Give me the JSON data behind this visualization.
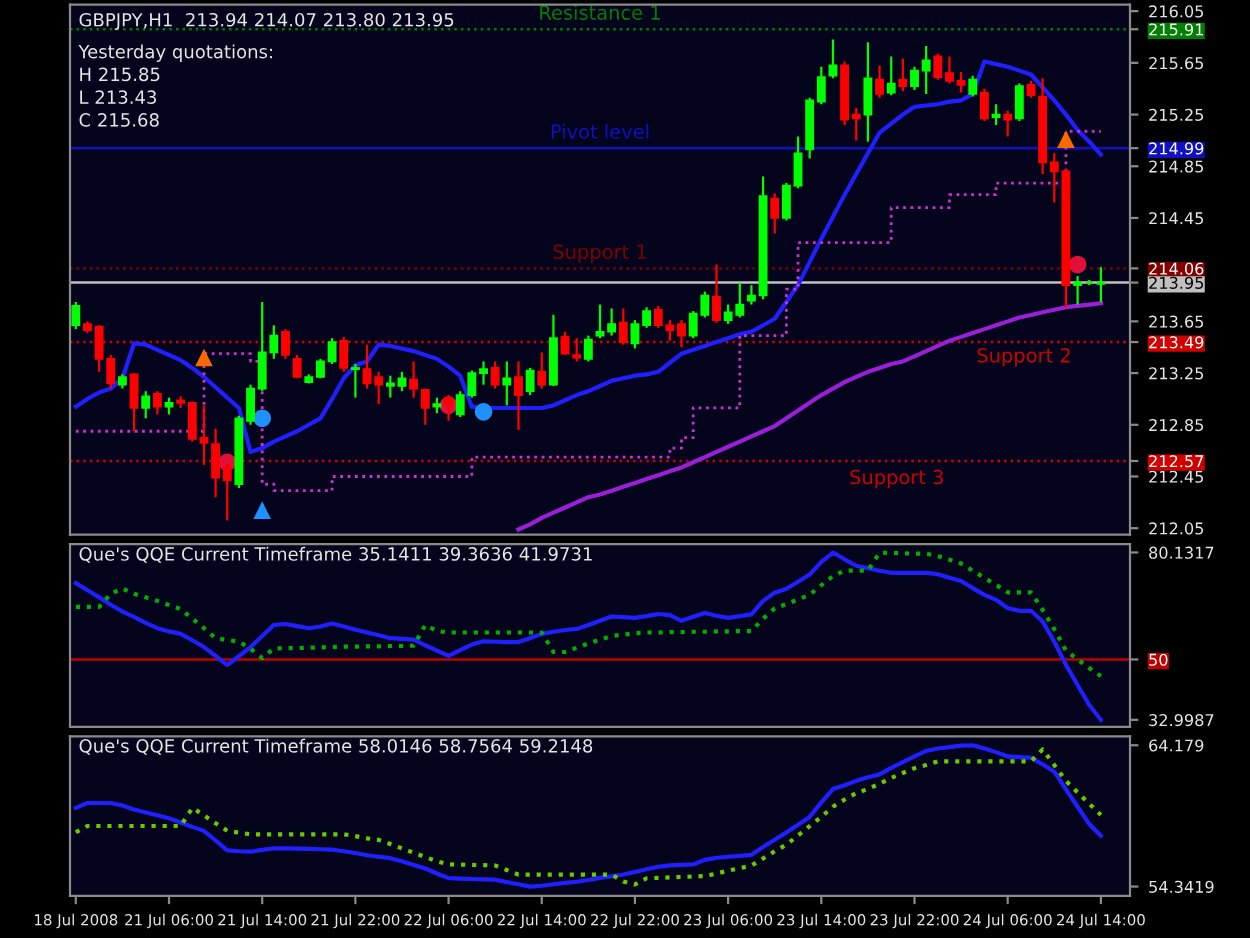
{
  "chart_data": [
    {
      "type": "candlestick",
      "title": "GBPJPY,H1  213.94 214.07 213.80 213.95",
      "annotations": [
        "Yesterday quotations:",
        "H 215.85",
        "L 213.43",
        "C 215.68"
      ],
      "categories": [
        null,
        null,
        null,
        null,
        null,
        null,
        null,
        null,
        null,
        null,
        null,
        null,
        null,
        null,
        null,
        null,
        null,
        null,
        null,
        null,
        null,
        null,
        null,
        null,
        null,
        null,
        null,
        null,
        null,
        null,
        null,
        null,
        null,
        null,
        null,
        null,
        null,
        null,
        null,
        null,
        null,
        null,
        null,
        null,
        null,
        null,
        null,
        null,
        null,
        null,
        null,
        null,
        null,
        null,
        null,
        null,
        null,
        null,
        null,
        null,
        null,
        null,
        null,
        null,
        null,
        null,
        null,
        null,
        null,
        null,
        null,
        null,
        null,
        null,
        null,
        null,
        null,
        null,
        null,
        null,
        null,
        null,
        null,
        null,
        null,
        null,
        null,
        null,
        null
      ],
      "tick_labels": "y",
      "ohlc": [
        [
          213.62,
          213.8,
          213.59,
          213.77
        ],
        [
          213.63,
          213.65,
          213.56,
          213.58
        ],
        [
          213.61,
          213.62,
          213.26,
          213.36
        ],
        [
          213.36,
          213.39,
          213.13,
          213.17
        ],
        [
          213.16,
          213.24,
          213.13,
          213.22
        ],
        [
          213.24,
          213.25,
          212.8,
          212.98
        ],
        [
          212.98,
          213.11,
          212.9,
          213.07
        ],
        [
          213.09,
          213.11,
          212.93,
          212.99
        ],
        [
          212.99,
          213.06,
          212.93,
          213.02
        ],
        [
          213.04,
          213.07,
          212.98,
          213.02
        ],
        [
          213.02,
          213.03,
          212.72,
          212.74
        ],
        [
          212.75,
          213.0,
          212.54,
          212.71
        ],
        [
          212.7,
          212.82,
          212.29,
          212.44
        ],
        [
          212.52,
          212.55,
          212.11,
          212.42
        ],
        [
          212.39,
          212.92,
          212.36,
          212.9
        ],
        [
          212.88,
          213.16,
          212.85,
          213.13
        ],
        [
          213.13,
          213.8,
          213.11,
          213.41
        ],
        [
          213.41,
          213.62,
          213.36,
          213.54
        ],
        [
          213.57,
          213.59,
          213.36,
          213.39
        ],
        [
          213.36,
          213.39,
          213.21,
          213.22
        ],
        [
          213.18,
          213.24,
          213.17,
          213.22
        ],
        [
          213.22,
          213.36,
          213.21,
          213.34
        ],
        [
          213.34,
          213.52,
          213.32,
          213.49
        ],
        [
          213.5,
          213.53,
          213.26,
          213.29
        ],
        [
          213.28,
          213.32,
          213.06,
          213.29
        ],
        [
          213.28,
          213.47,
          213.13,
          213.17
        ],
        [
          213.22,
          213.26,
          213.01,
          213.16
        ],
        [
          213.15,
          213.23,
          213.06,
          213.17
        ],
        [
          213.15,
          213.26,
          213.11,
          213.21
        ],
        [
          213.2,
          213.34,
          213.06,
          213.13
        ],
        [
          213.12,
          213.13,
          212.85,
          212.98
        ],
        [
          212.99,
          213.06,
          212.94,
          213.01
        ],
        [
          213.06,
          213.08,
          212.88,
          213.0
        ],
        [
          212.93,
          213.11,
          212.91,
          213.08
        ],
        [
          213.08,
          213.27,
          213.06,
          213.25
        ],
        [
          213.25,
          213.34,
          213.16,
          213.28
        ],
        [
          213.29,
          213.34,
          213.13,
          213.16
        ],
        [
          213.16,
          213.34,
          213.0,
          213.21
        ],
        [
          213.22,
          213.34,
          212.81,
          213.08
        ],
        [
          213.11,
          213.29,
          213.08,
          213.27
        ],
        [
          213.26,
          213.41,
          213.13,
          213.16
        ],
        [
          213.16,
          213.7,
          213.15,
          213.52
        ],
        [
          213.53,
          213.57,
          213.39,
          213.4
        ],
        [
          213.39,
          213.52,
          213.34,
          213.37
        ],
        [
          213.36,
          213.54,
          213.34,
          213.51
        ],
        [
          213.54,
          213.78,
          213.52,
          213.57
        ],
        [
          213.57,
          213.75,
          213.54,
          213.63
        ],
        [
          213.64,
          213.75,
          213.47,
          213.49
        ],
        [
          213.48,
          213.66,
          213.44,
          213.63
        ],
        [
          213.62,
          213.76,
          213.6,
          213.73
        ],
        [
          213.74,
          213.77,
          213.6,
          213.62
        ],
        [
          213.62,
          213.66,
          213.5,
          213.58
        ],
        [
          213.63,
          213.66,
          213.45,
          213.54
        ],
        [
          213.54,
          213.73,
          213.52,
          213.71
        ],
        [
          213.7,
          213.88,
          213.68,
          213.85
        ],
        [
          213.84,
          214.09,
          213.64,
          213.66
        ],
        [
          213.66,
          213.78,
          213.63,
          213.72
        ],
        [
          213.7,
          213.95,
          213.68,
          213.78
        ],
        [
          213.81,
          213.93,
          213.78,
          213.85
        ],
        [
          213.85,
          214.77,
          213.82,
          214.62
        ],
        [
          214.6,
          214.64,
          214.33,
          214.45
        ],
        [
          214.45,
          214.72,
          214.43,
          214.7
        ],
        [
          214.7,
          215.08,
          214.68,
          214.95
        ],
        [
          214.98,
          215.38,
          214.91,
          215.36
        ],
        [
          215.35,
          215.62,
          215.33,
          215.54
        ],
        [
          215.55,
          215.83,
          215.53,
          215.63
        ],
        [
          215.63,
          215.66,
          215.17,
          215.21
        ],
        [
          215.25,
          215.3,
          215.05,
          215.22
        ],
        [
          215.25,
          215.81,
          215.04,
          215.53
        ],
        [
          215.52,
          215.63,
          215.38,
          215.41
        ],
        [
          215.42,
          215.7,
          215.4,
          215.49
        ],
        [
          215.52,
          215.68,
          215.43,
          215.47
        ],
        [
          215.47,
          215.62,
          215.44,
          215.59
        ],
        [
          215.59,
          215.78,
          215.41,
          215.67
        ],
        [
          215.7,
          215.72,
          215.52,
          215.54
        ],
        [
          215.57,
          215.7,
          215.49,
          215.51
        ],
        [
          215.51,
          215.58,
          215.42,
          215.48
        ],
        [
          215.41,
          215.55,
          215.39,
          215.52
        ],
        [
          215.42,
          215.45,
          215.2,
          215.22
        ],
        [
          215.23,
          215.33,
          215.17,
          215.25
        ],
        [
          215.25,
          215.28,
          215.08,
          215.21
        ],
        [
          215.22,
          215.49,
          215.2,
          215.47
        ],
        [
          215.48,
          215.51,
          215.38,
          215.4
        ],
        [
          215.39,
          215.53,
          214.79,
          214.88
        ],
        [
          214.88,
          214.95,
          214.57,
          214.81
        ],
        [
          214.81,
          214.83,
          213.76,
          213.93
        ],
        [
          213.93,
          214.0,
          213.78,
          213.95
        ],
        [
          213.95,
          213.97,
          213.93,
          213.95
        ],
        [
          213.94,
          214.07,
          213.8,
          213.95
        ]
      ],
      "colors": [
        "#00ff00",
        "#ff0000",
        "#ff0000",
        "#ff0000",
        "#00ff00",
        "#ff0000",
        "#00ff00",
        "#ff0000",
        "#00ff00",
        "#ff0000",
        "#ff0000",
        "#ff0000",
        "#ff0000",
        "#ff0000",
        "#00ff00",
        "#00ff00",
        "#00ff00",
        "#00ff00",
        "#ff0000",
        "#ff0000",
        "#00ff00",
        "#00ff00",
        "#00ff00",
        "#ff0000",
        "#00ff00",
        "#ff0000",
        "#ff0000",
        "#00ff00",
        "#00ff00",
        "#ff0000",
        "#ff0000",
        "#00ff00",
        "#ff0000",
        "#00ff00",
        "#00ff00",
        "#00ff00",
        "#ff0000",
        "#00ff00",
        "#ff0000",
        "#00ff00",
        "#ff0000",
        "#00ff00",
        "#ff0000",
        "#ff0000",
        "#00ff00",
        "#00ff00",
        "#00ff00",
        "#ff0000",
        "#00ff00",
        "#00ff00",
        "#ff0000",
        "#ff0000",
        "#ff0000",
        "#00ff00",
        "#00ff00",
        "#ff0000",
        "#00ff00",
        "#00ff00",
        "#00ff00",
        "#00ff00",
        "#ff0000",
        "#00ff00",
        "#00ff00",
        "#00ff00",
        "#00ff00",
        "#00ff00",
        "#ff0000",
        "#ff0000",
        "#00ff00",
        "#ff0000",
        "#00ff00",
        "#ff0000",
        "#00ff00",
        "#00ff00",
        "#ff0000",
        "#ff0000",
        "#ff0000",
        "#00ff00",
        "#ff0000",
        "#00ff00",
        "#ff0000",
        "#00ff00",
        "#ff0000",
        "#ff0000",
        "#ff0000",
        "#ff0000",
        "#00ff00",
        "#00ff00",
        "#00ff00"
      ],
      "series": [
        {
          "type": "line",
          "color": "#2020ff",
          "values": [
            212.99,
            213.05,
            213.1,
            213.13,
            213.21,
            213.48,
            213.47,
            213.43,
            213.39,
            213.35,
            213.29,
            213.22,
            213.14,
            213.06,
            212.98,
            212.64,
            212.67,
            212.72,
            212.76,
            212.8,
            212.85,
            212.9,
            213.05,
            213.21,
            213.31,
            213.34,
            213.47,
            213.46,
            213.44,
            213.42,
            213.39,
            213.36,
            213.3,
            213.23,
            212.99,
            212.98,
            212.98,
            212.98,
            212.98,
            212.98,
            212.98,
            213.0,
            213.04,
            213.08,
            213.11,
            213.15,
            213.19,
            213.21,
            213.23,
            213.24,
            213.26,
            213.33,
            213.4,
            213.43,
            213.46,
            213.49,
            213.52,
            213.55,
            213.57,
            213.62,
            213.67,
            213.8,
            213.93,
            214.11,
            214.29,
            214.46,
            214.63,
            214.79,
            214.95,
            215.11,
            215.18,
            215.25,
            215.31,
            215.32,
            215.33,
            215.35,
            215.36,
            215.41,
            215.66,
            215.64,
            215.62,
            215.59,
            215.56,
            215.46,
            215.36,
            215.25,
            215.13,
            215.04,
            214.94
          ]
        },
        {
          "type": "line",
          "color": "#9a1fd6",
          "values": [
            null,
            null,
            null,
            null,
            null,
            null,
            null,
            null,
            null,
            null,
            null,
            null,
            null,
            null,
            null,
            null,
            null,
            null,
            null,
            null,
            null,
            null,
            null,
            null,
            null,
            null,
            null,
            null,
            null,
            null,
            null,
            null,
            null,
            null,
            null,
            null,
            null,
            null,
            212.04,
            212.08,
            212.13,
            212.17,
            212.21,
            212.25,
            212.29,
            212.31,
            212.34,
            212.37,
            212.4,
            212.43,
            212.46,
            212.49,
            212.52,
            212.56,
            212.6,
            212.64,
            212.68,
            212.72,
            212.76,
            212.8,
            212.84,
            212.9,
            212.96,
            213.02,
            213.08,
            213.13,
            213.18,
            213.22,
            213.26,
            213.29,
            213.32,
            213.34,
            213.38,
            213.42,
            213.46,
            213.5,
            213.53,
            213.56,
            213.59,
            213.62,
            213.65,
            213.68,
            213.7,
            213.72,
            213.74,
            213.76,
            213.77,
            213.78,
            213.79
          ]
        },
        {
          "type": "step",
          "color": "#d030d0",
          "line_style": "dotted",
          "values": [
            212.8,
            212.8,
            212.8,
            212.8,
            212.8,
            212.8,
            212.8,
            212.8,
            212.8,
            212.8,
            212.8,
            213.4,
            213.4,
            213.4,
            213.4,
            213.34,
            212.39,
            212.34,
            212.34,
            212.34,
            212.34,
            212.34,
            212.45,
            212.45,
            212.45,
            212.45,
            212.45,
            212.45,
            212.45,
            212.45,
            212.45,
            212.45,
            212.45,
            212.45,
            212.6,
            212.6,
            212.6,
            212.6,
            212.6,
            212.6,
            212.6,
            212.6,
            212.6,
            212.6,
            212.6,
            212.6,
            212.6,
            212.6,
            212.6,
            212.6,
            212.6,
            212.67,
            212.75,
            212.98,
            212.98,
            212.98,
            212.98,
            213.54,
            213.54,
            213.54,
            213.54,
            213.9,
            214.26,
            214.26,
            214.26,
            214.26,
            214.26,
            214.26,
            214.26,
            214.26,
            214.53,
            214.53,
            214.53,
            214.53,
            214.53,
            214.63,
            214.63,
            214.63,
            214.63,
            214.72,
            214.72,
            214.72,
            214.72,
            214.72,
            214.72,
            215.12,
            215.12,
            215.12,
            215.12
          ]
        },
        {
          "type": "scatter",
          "marker": "triangle",
          "color": "#ff6a00",
          "values": [
            null,
            null,
            null,
            null,
            null,
            null,
            null,
            null,
            null,
            null,
            null,
            213.37,
            null,
            null,
            null,
            null,
            null,
            null,
            null,
            null,
            null,
            null,
            null,
            null,
            null,
            null,
            null,
            null,
            null,
            null,
            null,
            null,
            null,
            null,
            null,
            null,
            null,
            null,
            null,
            null,
            null,
            null,
            null,
            null,
            null,
            null,
            null,
            null,
            null,
            null,
            null,
            null,
            null,
            null,
            null,
            null,
            null,
            null,
            null,
            null,
            null,
            null,
            null,
            null,
            null,
            null,
            null,
            null,
            null,
            null,
            null,
            null,
            null,
            null,
            null,
            null,
            null,
            null,
            null,
            null,
            null,
            null,
            null,
            null,
            null,
            215.06,
            null,
            null,
            null
          ]
        },
        {
          "type": "scatter",
          "marker": "triangle",
          "color": "#1e90ff",
          "values": [
            null,
            null,
            null,
            null,
            null,
            null,
            null,
            null,
            null,
            null,
            null,
            null,
            null,
            null,
            null,
            null,
            212.19,
            null,
            null,
            null,
            null,
            null,
            null,
            null,
            null,
            null,
            null,
            null,
            null,
            null,
            null,
            null,
            null,
            null,
            null,
            null,
            null,
            null,
            null,
            null,
            null,
            null,
            null,
            null,
            null,
            null,
            null,
            null,
            null,
            null,
            null,
            null,
            null,
            null,
            null,
            null,
            null,
            null,
            null,
            null,
            null,
            null,
            null,
            null,
            null,
            null,
            null,
            null,
            null,
            null,
            null,
            null,
            null,
            null,
            null,
            null,
            null,
            null,
            null,
            null,
            null,
            null,
            null,
            null,
            null,
            null,
            null,
            null,
            null
          ]
        },
        {
          "type": "scatter",
          "marker": "circle",
          "color": "#1e90ff",
          "values": [
            null,
            null,
            null,
            null,
            null,
            null,
            null,
            null,
            null,
            null,
            null,
            null,
            null,
            null,
            null,
            null,
            212.9,
            null,
            null,
            null,
            null,
            null,
            null,
            null,
            null,
            null,
            null,
            null,
            null,
            null,
            null,
            null,
            null,
            null,
            null,
            212.95,
            null,
            null,
            null,
            null,
            null,
            null,
            null,
            null,
            null,
            null,
            null,
            null,
            null,
            null,
            null,
            null,
            null,
            null,
            null,
            null,
            null,
            null,
            null,
            null,
            null,
            null,
            null,
            null,
            null,
            null,
            null,
            null,
            null,
            null,
            null,
            null,
            null,
            null,
            null,
            null,
            null,
            null,
            null,
            null,
            null,
            null,
            null,
            null,
            null,
            null,
            null,
            null,
            null
          ]
        },
        {
          "type": "scatter",
          "marker": "circle",
          "color": "#e0103a",
          "values": [
            null,
            null,
            null,
            null,
            null,
            null,
            null,
            null,
            null,
            null,
            null,
            null,
            null,
            212.56,
            null,
            null,
            null,
            null,
            null,
            null,
            null,
            null,
            null,
            null,
            null,
            null,
            null,
            null,
            null,
            null,
            null,
            null,
            213.0,
            null,
            null,
            null,
            null,
            null,
            null,
            null,
            null,
            null,
            null,
            null,
            null,
            null,
            null,
            null,
            null,
            null,
            null,
            null,
            null,
            null,
            null,
            null,
            null,
            null,
            null,
            null,
            null,
            null,
            null,
            null,
            null,
            null,
            null,
            null,
            null,
            null,
            null,
            null,
            null,
            null,
            null,
            null,
            null,
            null,
            null,
            null,
            null,
            null,
            null,
            null,
            null,
            null,
            214.09,
            null,
            null
          ]
        }
      ],
      "ylim": [
        212.0,
        216.1
      ],
      "yticks": [
        212.05,
        212.45,
        212.85,
        213.25,
        213.65,
        214.45,
        214.85,
        215.25,
        215.65,
        216.05,
        {
          "value": 215.91,
          "label": "215.91"
        },
        {
          "value": 214.99,
          "label": "214.99"
        },
        {
          "value": 214.06,
          "label": "214.06"
        },
        {
          "value": 213.95,
          "label": "213.95"
        },
        {
          "value": 213.49,
          "label": "213.49"
        },
        {
          "value": 212.57,
          "label": "212.57"
        }
      ],
      "ref_lines": [
        {
          "axis": "y",
          "value": 215.91,
          "label": "Resistance 1",
          "color": "#008000",
          "line_style": "dotted"
        },
        {
          "axis": "y",
          "value": 214.99,
          "label": "Pivot level",
          "color": "#1010c0",
          "line_style": "solid"
        },
        {
          "axis": "y",
          "value": 214.06,
          "label": "Support 1",
          "color": "#800000",
          "line_style": "dotted"
        },
        {
          "axis": "y",
          "value": 213.95,
          "color": "#c0c0c0",
          "line_style": "solid"
        },
        {
          "axis": "y",
          "value": 213.49,
          "label": "Support 2",
          "color": "#d00000",
          "line_style": "dotted"
        },
        {
          "axis": "y",
          "value": 212.57,
          "label": "Support 3",
          "color": "#d00000",
          "line_style": "dotted"
        }
      ]
    },
    {
      "type": "line",
      "title": "Que's QQE Current Timeframe 35.1411 39.3636 41.9731",
      "categories": [
        null,
        null,
        null,
        null,
        null,
        null,
        null,
        null,
        null,
        null,
        null,
        null,
        null,
        null,
        null,
        null,
        null,
        null,
        null,
        null,
        null,
        null,
        null,
        null,
        null,
        null,
        null,
        null,
        null,
        null,
        null,
        null,
        null,
        null,
        null,
        null,
        null,
        null,
        null,
        null,
        null,
        null,
        null,
        null,
        null,
        null,
        null,
        null,
        null,
        null,
        null,
        null,
        null,
        null,
        null,
        null,
        null,
        null,
        null,
        null,
        null,
        null,
        null,
        null,
        null,
        null,
        null,
        null,
        null,
        null,
        null,
        null,
        null,
        null,
        null,
        null,
        null,
        null,
        null,
        null,
        null,
        null,
        null,
        null,
        null,
        null,
        null,
        null,
        null
      ],
      "tick_labels": "y",
      "series": [
        {
          "color": "#2020ff",
          "values": [
            71.5,
            69.5,
            67.5,
            65.4,
            63.5,
            62.0,
            60.3,
            58.8,
            57.9,
            57.2,
            55.4,
            53.5,
            51.0,
            48.4,
            50.9,
            53.5,
            56.6,
            59.7,
            60.0,
            59.4,
            58.8,
            59.3,
            60.1,
            59.3,
            58.4,
            57.6,
            56.8,
            56.0,
            55.8,
            55.6,
            54.0,
            52.5,
            51.0,
            52.6,
            54.2,
            55.1,
            55.0,
            54.9,
            54.9,
            56.0,
            57.2,
            57.8,
            58.3,
            58.6,
            59.7,
            60.9,
            62.1,
            61.9,
            61.7,
            62.2,
            62.8,
            62.5,
            60.9,
            62.0,
            63.1,
            62.3,
            61.7,
            62.2,
            62.7,
            66.5,
            68.8,
            69.9,
            71.9,
            73.9,
            77.5,
            80.1,
            78.2,
            76.4,
            75.7,
            75.0,
            74.4,
            74.4,
            74.4,
            74.4,
            74.0,
            73.0,
            72.1,
            70.1,
            68.2,
            66.8,
            64.5,
            63.7,
            63.7,
            60.7,
            55.0,
            48.5,
            42.8,
            37.2,
            33.0
          ]
        },
        {
          "color": "#00b000",
          "line_style": "dotted",
          "values": [
            64.8,
            64.8,
            64.8,
            68.5,
            70.0,
            68.5,
            67.5,
            66.5,
            65.3,
            64.2,
            61.5,
            58.8,
            56.0,
            55.5,
            55.0,
            53.0,
            50.4,
            53.1,
            53.2,
            53.2,
            53.3,
            53.4,
            53.5,
            53.6,
            53.6,
            53.7,
            53.7,
            53.8,
            53.8,
            53.9,
            59.7,
            58.0,
            57.6,
            57.6,
            57.6,
            57.6,
            57.6,
            57.6,
            57.6,
            57.6,
            57.6,
            52.1,
            52.1,
            53.3,
            54.5,
            55.6,
            56.6,
            57.0,
            57.4,
            57.6,
            57.6,
            57.7,
            57.7,
            57.8,
            57.8,
            57.9,
            57.9,
            58.0,
            58.0,
            61.5,
            64.4,
            65.6,
            66.9,
            68.2,
            70.9,
            73.5,
            75.0,
            75.0,
            75.0,
            80.1,
            80.0,
            79.9,
            79.8,
            79.8,
            79.1,
            78.1,
            77.0,
            75.0,
            73.0,
            71.0,
            68.9,
            68.9,
            68.9,
            64.0,
            58.5,
            52.5,
            50.0,
            47.6,
            45.3
          ]
        }
      ],
      "ylim": [
        31.0,
        82.5
      ],
      "yticks": [
        32.9987,
        80.1317,
        {
          "value": 50,
          "label": "50"
        }
      ],
      "ref_lines": [
        {
          "axis": "y",
          "value": 50,
          "color": "#c00000",
          "line_style": "solid"
        }
      ]
    },
    {
      "type": "line",
      "title": "Que's QQE Current Timeframe 58.0146 58.7564 59.2148",
      "categories": [
        "18 Jul 2008",
        null,
        null,
        null,
        null,
        null,
        null,
        null,
        "21 Jul 06:00",
        null,
        null,
        null,
        null,
        null,
        null,
        null,
        "21 Jul 14:00",
        null,
        null,
        null,
        null,
        null,
        null,
        null,
        "21 Jul 22:00",
        null,
        null,
        null,
        null,
        null,
        null,
        null,
        "22 Jul 06:00",
        null,
        null,
        null,
        null,
        null,
        null,
        null,
        "22 Jul 14:00",
        null,
        null,
        null,
        null,
        null,
        null,
        null,
        "22 Jul 22:00",
        null,
        null,
        null,
        null,
        null,
        null,
        null,
        "23 Jul 06:00",
        null,
        null,
        null,
        null,
        null,
        null,
        null,
        "23 Jul 14:00",
        null,
        null,
        null,
        null,
        null,
        null,
        null,
        "23 Jul 22:00",
        null,
        null,
        null,
        null,
        null,
        null,
        null,
        "24 Jul 06:00",
        null,
        null,
        null,
        null,
        null,
        null,
        null,
        "24 Jul 14:00"
      ],
      "series": [
        {
          "color": "#2020ff",
          "values": [
            59.82,
            60.16,
            60.16,
            60.16,
            59.99,
            59.7,
            59.5,
            59.3,
            59.1,
            58.8,
            58.5,
            58.22,
            57.55,
            56.86,
            56.8,
            56.77,
            56.9,
            57.01,
            57.0,
            56.98,
            56.96,
            56.94,
            56.91,
            56.8,
            56.68,
            56.52,
            56.42,
            56.32,
            56.1,
            55.85,
            55.6,
            55.25,
            54.93,
            54.9,
            54.87,
            54.84,
            54.82,
            54.65,
            54.5,
            54.34,
            54.4,
            54.5,
            54.6,
            54.68,
            54.8,
            54.95,
            55.06,
            55.18,
            55.36,
            55.55,
            55.72,
            55.82,
            55.85,
            55.89,
            56.2,
            56.35,
            56.42,
            56.48,
            56.55,
            57.1,
            57.6,
            58.1,
            58.65,
            59.19,
            60.2,
            61.13,
            61.4,
            61.7,
            61.95,
            62.15,
            62.6,
            63.0,
            63.4,
            63.79,
            63.95,
            64.05,
            64.15,
            64.18,
            63.95,
            63.7,
            63.4,
            63.35,
            63.31,
            62.85,
            62.34,
            61.1,
            59.9,
            58.7,
            57.88
          ]
        },
        {
          "color": "#66cc00",
          "line_style": "dotted",
          "values": [
            58.12,
            58.56,
            58.56,
            58.56,
            58.56,
            58.56,
            58.56,
            58.56,
            58.56,
            58.56,
            59.82,
            59.3,
            58.75,
            58.22,
            58.1,
            57.98,
            57.98,
            57.98,
            57.98,
            57.98,
            57.98,
            57.98,
            57.98,
            57.98,
            57.85,
            57.7,
            57.59,
            57.3,
            57.0,
            56.7,
            56.4,
            56.1,
            55.89,
            55.87,
            55.85,
            55.83,
            55.81,
            55.5,
            55.17,
            55.17,
            55.17,
            55.17,
            55.17,
            55.17,
            55.17,
            55.17,
            55.17,
            54.7,
            54.49,
            54.92,
            54.95,
            54.98,
            55.01,
            55.04,
            55.07,
            55.25,
            55.45,
            55.62,
            55.8,
            56.3,
            56.8,
            57.25,
            57.9,
            58.55,
            59.2,
            59.9,
            60.4,
            60.85,
            61.13,
            61.5,
            61.9,
            62.25,
            62.58,
            62.8,
            63.06,
            63.06,
            63.06,
            63.06,
            63.06,
            63.06,
            63.06,
            63.06,
            63.06,
            63.89,
            62.8,
            61.7,
            60.9,
            60.1,
            59.33
          ]
        }
      ],
      "ylim": [
        53.7,
        64.8
      ],
      "yticks": [
        54.3419,
        64.179
      ]
    }
  ]
}
